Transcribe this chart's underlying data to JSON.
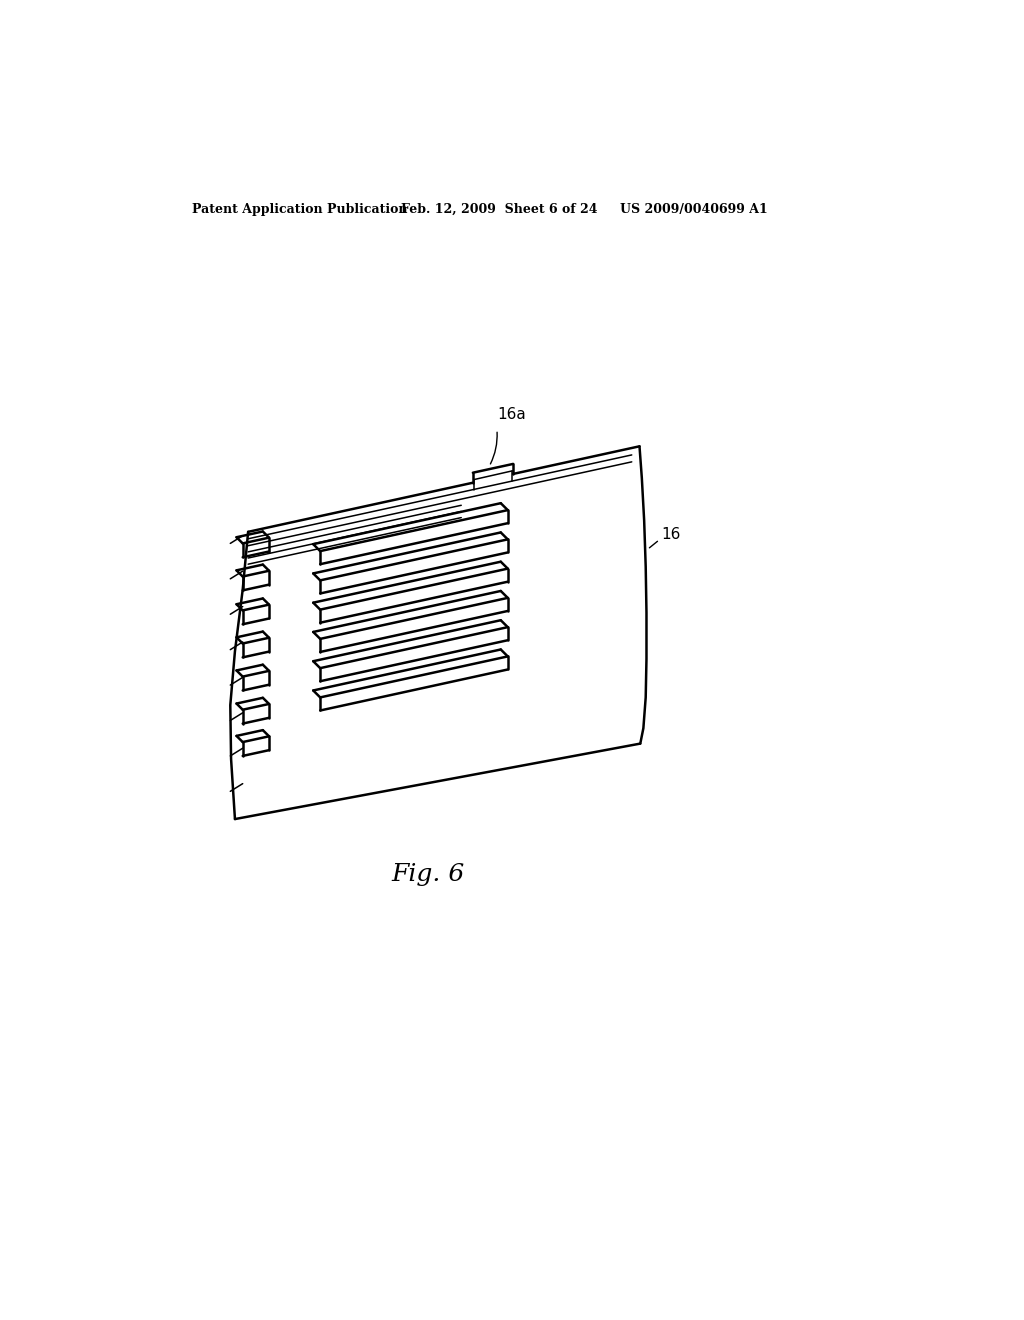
{
  "bg_color": "#ffffff",
  "header_left": "Patent Application Publication",
  "header_mid": "Feb. 12, 2009  Sheet 6 of 24",
  "header_right": "US 2009/0040699 A1",
  "fig_label": "Fig. 6",
  "label_16a": "16a",
  "label_16": "16",
  "line_color": "#000000",
  "lw_main": 1.8,
  "lw_thin": 1.1,
  "header_fontsize": 9,
  "fig_fontsize": 18,
  "label_fontsize": 11,
  "tilt": -0.22
}
